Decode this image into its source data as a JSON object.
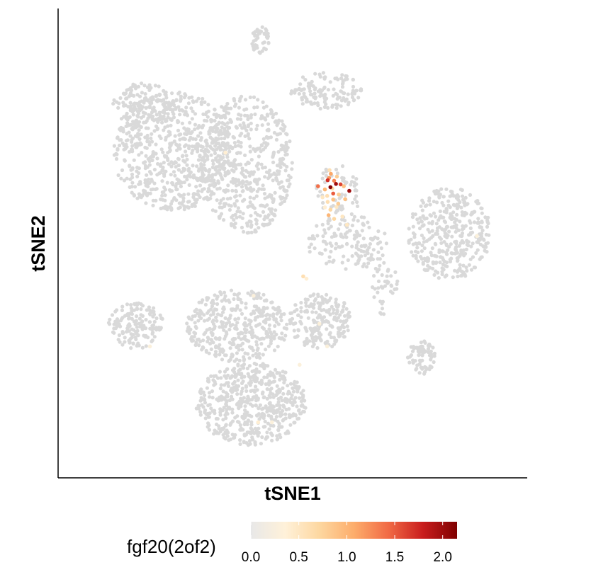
{
  "chart_data": {
    "type": "scatter",
    "title": "",
    "xlabel": "tSNE1",
    "ylabel": "tSNE2",
    "x_ticks": [],
    "y_ticks": [],
    "grid": false,
    "point_color_base": "#d9d9d9",
    "legend": {
      "title": "fgf20(2of2)",
      "placement": "bottom",
      "type": "colorbar",
      "range": [
        0.0,
        2.15
      ],
      "ticks": [
        "0.0",
        "0.5",
        "1.0",
        "1.5",
        "2.0"
      ],
      "tick_values": [
        0.0,
        0.5,
        1.0,
        1.5,
        2.0
      ],
      "colors": [
        "#e8e8e8",
        "#fff1d9",
        "#fdd7a0",
        "#fdad6b",
        "#f16a45",
        "#c91d1d",
        "#7f0000"
      ]
    },
    "xlim": [
      -50,
      50
    ],
    "ylim": [
      -50,
      50
    ],
    "clusters": [
      {
        "cx": -32,
        "cy": 30,
        "rx": 7,
        "ry": 5,
        "n": 110
      },
      {
        "cx": -26,
        "cy": 20,
        "rx": 13,
        "ry": 13,
        "n": 700
      },
      {
        "cx": -10,
        "cy": 17,
        "rx": 10,
        "ry": 15,
        "n": 520
      },
      {
        "cx": 7,
        "cy": 33,
        "rx": 8,
        "ry": 4,
        "n": 130
      },
      {
        "cx": 10,
        "cy": 11,
        "rx": 5,
        "ry": 6,
        "n": 60
      },
      {
        "cx": 12,
        "cy": 0,
        "rx": 9,
        "ry": 6,
        "n": 140
      },
      {
        "cx": 34,
        "cy": 2,
        "rx": 9,
        "ry": 10,
        "n": 380
      },
      {
        "cx": 20,
        "cy": -10,
        "rx": 3,
        "ry": 6,
        "n": 40
      },
      {
        "cx": -12,
        "cy": -18,
        "rx": 11,
        "ry": 8,
        "n": 380
      },
      {
        "cx": 6,
        "cy": -17,
        "rx": 7,
        "ry": 6,
        "n": 210
      },
      {
        "cx": -34,
        "cy": -18,
        "rx": 6,
        "ry": 5,
        "n": 150
      },
      {
        "cx": -9,
        "cy": -35,
        "rx": 12,
        "ry": 9,
        "n": 560
      },
      {
        "cx": 28,
        "cy": -25,
        "rx": 3,
        "ry": 4,
        "n": 70
      },
      {
        "cx": -7,
        "cy": 44,
        "rx": 2,
        "ry": 3,
        "n": 45
      }
    ],
    "expressing_points": [
      {
        "x": 8.2,
        "y": 12.1,
        "v": 2.1
      },
      {
        "x": 9.4,
        "y": 12.8,
        "v": 2.0
      },
      {
        "x": 7.6,
        "y": 13.6,
        "v": 1.7
      },
      {
        "x": 12.3,
        "y": 11.3,
        "v": 2.0
      },
      {
        "x": 10.4,
        "y": 12.7,
        "v": 1.6
      },
      {
        "x": 5.5,
        "y": 12.3,
        "v": 1.4
      },
      {
        "x": 8.8,
        "y": 10.7,
        "v": 1.5
      },
      {
        "x": 7.9,
        "y": 14.1,
        "v": 1.2
      },
      {
        "x": 8.3,
        "y": 15.0,
        "v": 1.1
      },
      {
        "x": 9.0,
        "y": 13.5,
        "v": 1.3
      },
      {
        "x": 7.0,
        "y": 11.6,
        "v": 1.0
      },
      {
        "x": 11.1,
        "y": 12.3,
        "v": 0.9
      },
      {
        "x": 10.0,
        "y": 10.5,
        "v": 0.8
      },
      {
        "x": 8.8,
        "y": 9.4,
        "v": 0.9
      },
      {
        "x": 9.9,
        "y": 8.5,
        "v": 0.8
      },
      {
        "x": 7.6,
        "y": 8.9,
        "v": 0.6
      },
      {
        "x": 8.2,
        "y": 7.2,
        "v": 0.7
      },
      {
        "x": 7.8,
        "y": 6.0,
        "v": 1.0
      },
      {
        "x": 9.0,
        "y": 5.2,
        "v": 0.7
      },
      {
        "x": 10.8,
        "y": 5.7,
        "v": 0.5
      },
      {
        "x": 11.4,
        "y": 9.5,
        "v": 0.9
      },
      {
        "x": 7.5,
        "y": 10.2,
        "v": 0.6
      },
      {
        "x": 8.6,
        "y": 11.8,
        "v": 0.7
      },
      {
        "x": 9.5,
        "y": 7.8,
        "v": 0.5
      },
      {
        "x": 11.8,
        "y": 3.9,
        "v": 0.5
      },
      {
        "x": 7.0,
        "y": 7.7,
        "v": 0.4
      },
      {
        "x": 6.5,
        "y": 9.9,
        "v": 0.5
      },
      {
        "x": 9.6,
        "y": 14.4,
        "v": 0.8
      },
      {
        "x": 8.0,
        "y": 15.8,
        "v": 0.6
      },
      {
        "x": 2.3,
        "y": -7.3,
        "v": 0.6
      },
      {
        "x": 3.0,
        "y": -7.8,
        "v": 0.4
      },
      {
        "x": -14.6,
        "y": 19.6,
        "v": 0.4
      },
      {
        "x": -8.5,
        "y": -11.5,
        "v": 0.3
      },
      {
        "x": 5.8,
        "y": -17.6,
        "v": 0.3
      },
      {
        "x": 1.5,
        "y": -26.5,
        "v": 0.3
      },
      {
        "x": -7.5,
        "y": -39.0,
        "v": 0.4
      },
      {
        "x": -4.5,
        "y": -39.0,
        "v": 0.3
      },
      {
        "x": 7.5,
        "y": -22.5,
        "v": 0.3
      },
      {
        "x": 40.0,
        "y": 1.5,
        "v": 0.3
      },
      {
        "x": -31.0,
        "y": -22.5,
        "v": 0.3
      }
    ]
  }
}
